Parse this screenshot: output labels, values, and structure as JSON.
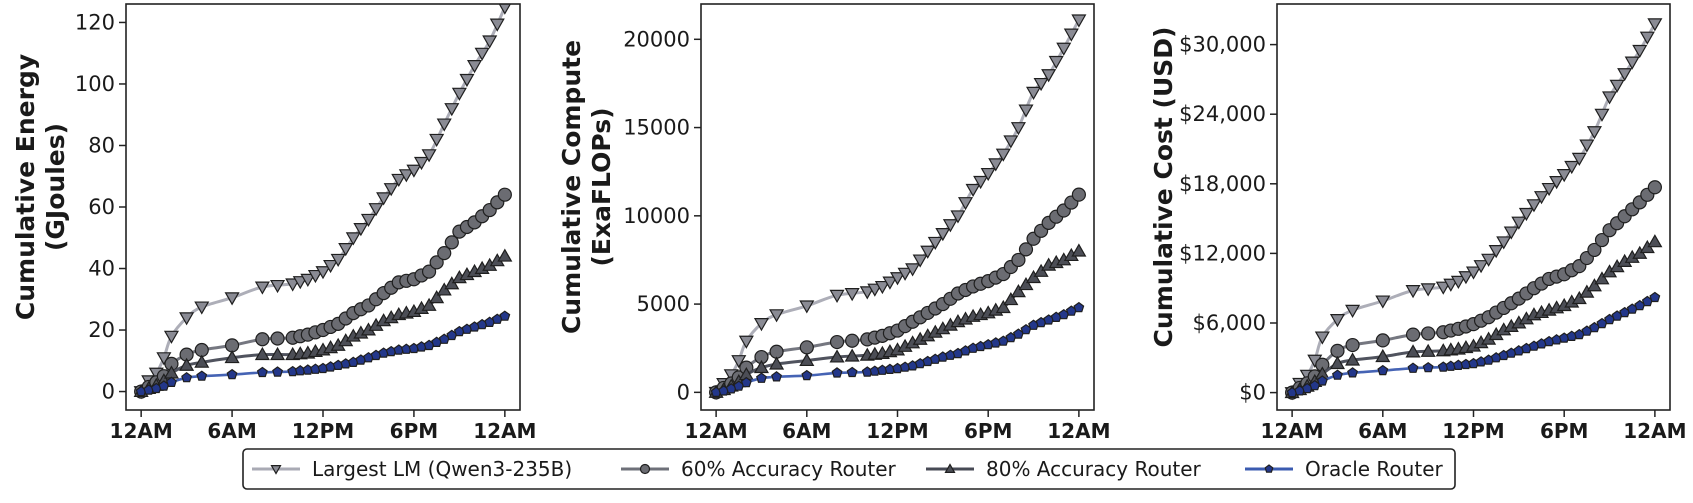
{
  "figure": {
    "legend": {
      "items": [
        {
          "label": "Largest LM (Qwen3-235B)",
          "marker": "triangle-down",
          "line_color": "#a9aab4",
          "marker_color": "#8a8b94"
        },
        {
          "label": "60% Accuracy Router",
          "marker": "circle",
          "line_color": "#6e7079",
          "marker_color": "#6b6c72"
        },
        {
          "label": "80% Accuracy Router",
          "marker": "triangle-up",
          "line_color": "#474a55",
          "marker_color": "#4c4e56"
        },
        {
          "label": "Oracle Router",
          "marker": "pentagon",
          "line_color": "#3b5bb0",
          "marker_color": "#23378a"
        }
      ]
    }
  },
  "chart_data": [
    {
      "type": "line",
      "title": "",
      "xlabel": "",
      "ylabel": "Cumulative Energy\n(GJoules)",
      "ylabel_lines": [
        "Cumulative Energy",
        "(GJoules)"
      ],
      "x_tick_labels": [
        "12AM",
        "6AM",
        "12PM",
        "6PM",
        "12AM"
      ],
      "y_ticks": [
        0,
        20,
        40,
        60,
        80,
        100,
        120
      ],
      "y_tick_labels": [
        "0",
        "20",
        "40",
        "60",
        "80",
        "100",
        "120"
      ],
      "ylim": [
        -6,
        126
      ],
      "xlim_hours": [
        -1,
        25
      ],
      "grid": false,
      "legend_position": "bottom-center (shared)",
      "x_hours": [
        0,
        0.5,
        1,
        1.5,
        2,
        3,
        4,
        6,
        8,
        10,
        11,
        12,
        13,
        14,
        15,
        16,
        17,
        18,
        19,
        20,
        21,
        22,
        23,
        24
      ],
      "series": [
        {
          "name": "Largest LM (Qwen3-235B)",
          "values": [
            0,
            3.5,
            6,
            11,
            18,
            24,
            27.5,
            30.5,
            34,
            35,
            36.5,
            39,
            43,
            50,
            56,
            63,
            69,
            72,
            77,
            87,
            97,
            106,
            114,
            125
          ]
        },
        {
          "name": "60% Accuracy Router",
          "values": [
            0,
            1.5,
            3,
            5,
            9,
            12,
            13.5,
            15,
            17,
            17.5,
            18.5,
            20,
            22,
            25.5,
            28,
            32,
            35.5,
            36.5,
            39,
            45,
            52,
            55,
            59,
            64
          ]
        },
        {
          "name": "80% Accuracy Router",
          "values": [
            0,
            1,
            2,
            3.5,
            6,
            8.5,
            9.5,
            11,
            12,
            12,
            12.5,
            13.5,
            15,
            18,
            20,
            23,
            25,
            26,
            28,
            33,
            37,
            39,
            41,
            44
          ]
        },
        {
          "name": "Oracle Router",
          "values": [
            0,
            0.5,
            1,
            1.8,
            3,
            4.5,
            5,
            5.5,
            6.2,
            6.5,
            7,
            7.5,
            8.5,
            9.5,
            11,
            12.5,
            13.5,
            14,
            15,
            17,
            19.5,
            21,
            22.5,
            24.5
          ]
        }
      ]
    },
    {
      "type": "line",
      "title": "",
      "xlabel": "",
      "ylabel": "Cumulative Compute\n(ExaFLOPs)",
      "ylabel_lines": [
        "Cumulative Compute",
        "(ExaFLOPs)"
      ],
      "x_tick_labels": [
        "12AM",
        "6AM",
        "12PM",
        "6PM",
        "12AM"
      ],
      "y_ticks": [
        0,
        5000,
        10000,
        15000,
        20000
      ],
      "y_tick_labels": [
        "0",
        "5000",
        "10000",
        "15000",
        "20000"
      ],
      "ylim": [
        -1000,
        22000
      ],
      "xlim_hours": [
        -1,
        25
      ],
      "grid": false,
      "legend_position": "bottom-center (shared)",
      "x_hours": [
        0,
        0.5,
        1,
        1.5,
        2,
        3,
        4,
        6,
        8,
        10,
        11,
        12,
        13,
        14,
        15,
        16,
        17,
        18,
        19,
        20,
        21,
        22,
        23,
        24
      ],
      "series": [
        {
          "name": "Largest LM (Qwen3-235B)",
          "values": [
            0,
            500,
            1000,
            1800,
            2900,
            3900,
            4400,
            4900,
            5500,
            5700,
            6000,
            6500,
            7000,
            8000,
            9000,
            10000,
            11500,
            12400,
            13500,
            15000,
            17000,
            18000,
            19500,
            21100
          ]
        },
        {
          "name": "60% Accuracy Router",
          "values": [
            0,
            250,
            500,
            850,
            1400,
            2000,
            2300,
            2550,
            2850,
            3000,
            3200,
            3500,
            4000,
            4500,
            5000,
            5600,
            6000,
            6300,
            6700,
            7500,
            8700,
            9600,
            10300,
            11200
          ]
        },
        {
          "name": "80% Accuracy Router",
          "values": [
            0,
            150,
            350,
            600,
            1000,
            1400,
            1600,
            1800,
            2000,
            2100,
            2200,
            2400,
            2800,
            3200,
            3600,
            4000,
            4300,
            4500,
            4800,
            5700,
            6500,
            7200,
            7500,
            8000
          ]
        },
        {
          "name": "Oracle Router",
          "values": [
            0,
            80,
            200,
            350,
            550,
            800,
            880,
            950,
            1100,
            1150,
            1250,
            1350,
            1500,
            1750,
            2000,
            2200,
            2500,
            2700,
            2900,
            3300,
            3800,
            4100,
            4400,
            4800
          ]
        }
      ]
    },
    {
      "type": "line",
      "title": "",
      "xlabel": "",
      "ylabel": "Cumulative Cost (USD)",
      "ylabel_lines": [
        "Cumulative Cost (USD)"
      ],
      "x_tick_labels": [
        "12AM",
        "6AM",
        "12PM",
        "6PM",
        "12AM"
      ],
      "y_ticks": [
        0,
        6000,
        12000,
        18000,
        24000,
        30000
      ],
      "y_tick_labels": [
        "$0",
        "$6,000",
        "$12,000",
        "$18,000",
        "$24,000",
        "$30,000"
      ],
      "ylim": [
        -1500,
        33500
      ],
      "xlim_hours": [
        -1,
        25
      ],
      "grid": false,
      "legend_position": "bottom-center (shared)",
      "x_hours": [
        0,
        0.5,
        1,
        1.5,
        2,
        3,
        4,
        6,
        8,
        10,
        11,
        12,
        13,
        14,
        15,
        16,
        17,
        18,
        19,
        20,
        21,
        22,
        23,
        24
      ],
      "series": [
        {
          "name": "Largest LM (Qwen3-235B)",
          "values": [
            0,
            800,
            1500,
            2800,
            4800,
            6300,
            7100,
            7900,
            8800,
            9100,
            9600,
            10400,
            11500,
            13000,
            14700,
            16200,
            17600,
            18800,
            20200,
            22500,
            25500,
            27500,
            29500,
            31800
          ]
        },
        {
          "name": "60% Accuracy Router",
          "values": [
            0,
            400,
            800,
            1400,
            2400,
            3600,
            4100,
            4500,
            5000,
            5200,
            5500,
            5900,
            6500,
            7300,
            8100,
            9000,
            9800,
            10200,
            10900,
            12300,
            14000,
            15200,
            16400,
            17700
          ]
        },
        {
          "name": "80% Accuracy Router",
          "values": [
            0,
            250,
            550,
            950,
            1600,
            2500,
            2800,
            3100,
            3500,
            3600,
            3750,
            4000,
            4600,
            5400,
            6000,
            6700,
            7100,
            7500,
            8100,
            9200,
            10400,
            11300,
            12000,
            13000
          ]
        },
        {
          "name": "Oracle Router",
          "values": [
            0,
            150,
            350,
            600,
            1000,
            1500,
            1700,
            1900,
            2100,
            2200,
            2350,
            2500,
            2800,
            3200,
            3600,
            4000,
            4400,
            4700,
            5000,
            5600,
            6300,
            6900,
            7500,
            8200
          ]
        }
      ]
    }
  ]
}
